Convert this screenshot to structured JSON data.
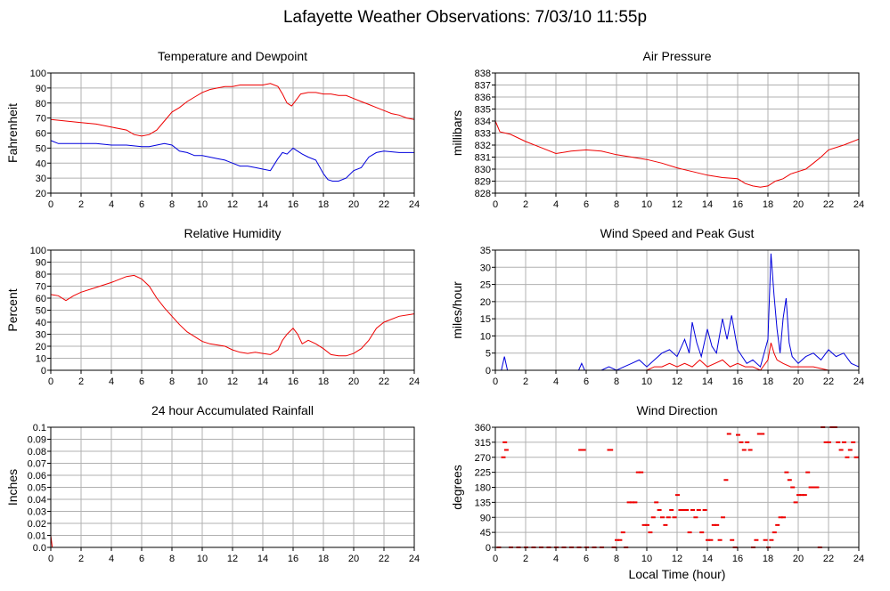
{
  "title": "Lafayette Weather Observations: 7/03/10 11:55p",
  "xlabel": "Local Time (hour)",
  "colors": {
    "red": "#ee0000",
    "blue": "#0000dd",
    "grid": "#b0b0b0",
    "frame": "#000000"
  },
  "chart_data": [
    {
      "id": "temp",
      "type": "line",
      "title": "Temperature and Dewpoint",
      "xlabel": "",
      "ylabel": "Fahrenheit",
      "xlim": [
        0,
        24
      ],
      "ylim": [
        20,
        100
      ],
      "xticks": [
        0,
        2,
        4,
        6,
        8,
        10,
        12,
        14,
        16,
        18,
        20,
        22,
        24
      ],
      "yticks": [
        20,
        30,
        40,
        50,
        60,
        70,
        80,
        90,
        100
      ],
      "grid": true,
      "series": [
        {
          "color": "#ee0000",
          "x": [
            0,
            1,
            2,
            3,
            4,
            5,
            5.5,
            6,
            6.5,
            7,
            7.5,
            8,
            8.5,
            9,
            9.5,
            10,
            10.5,
            11,
            11.5,
            12,
            12.5,
            13,
            13.5,
            14,
            14.5,
            15,
            15.3,
            15.6,
            15.9,
            16.2,
            16.5,
            17,
            17.5,
            18,
            18.5,
            19,
            19.5,
            20,
            20.5,
            21,
            21.5,
            22,
            22.5,
            23,
            23.5,
            24
          ],
          "y": [
            69,
            68,
            67,
            66,
            64,
            62,
            59,
            58,
            59,
            62,
            68,
            74,
            77,
            81,
            84,
            87,
            89,
            90,
            91,
            91,
            92,
            92,
            92,
            92,
            93,
            91,
            86,
            80,
            78,
            82,
            86,
            87,
            87,
            86,
            86,
            85,
            85,
            83,
            81,
            79,
            77,
            75,
            73,
            72,
            70,
            69
          ]
        },
        {
          "color": "#0000dd",
          "x": [
            0,
            0.5,
            1,
            2,
            3,
            4,
            5,
            6,
            6.5,
            7,
            7.5,
            8,
            8.5,
            9,
            9.5,
            10,
            10.5,
            11,
            11.5,
            12,
            12.5,
            13,
            13.5,
            14,
            14.5,
            15,
            15.3,
            15.6,
            16,
            16.3,
            16.6,
            17,
            17.5,
            18,
            18.3,
            18.6,
            19,
            19.5,
            20,
            20.5,
            21,
            21.5,
            22,
            23,
            24
          ],
          "y": [
            55,
            53,
            53,
            53,
            53,
            52,
            52,
            51,
            51,
            52,
            53,
            52,
            48,
            47,
            45,
            45,
            44,
            43,
            42,
            40,
            38,
            38,
            37,
            36,
            35,
            43,
            47,
            46,
            50,
            48,
            46,
            44,
            42,
            33,
            29,
            28,
            28,
            30,
            35,
            37,
            44,
            47,
            48,
            47,
            47
          ]
        }
      ]
    },
    {
      "id": "pressure",
      "type": "line",
      "title": "Air Pressure",
      "xlabel": "",
      "ylabel": "millibars",
      "xlim": [
        0,
        24
      ],
      "ylim": [
        828,
        838
      ],
      "xticks": [
        0,
        2,
        4,
        6,
        8,
        10,
        12,
        14,
        16,
        18,
        20,
        22,
        24
      ],
      "yticks": [
        828,
        829,
        830,
        831,
        832,
        833,
        834,
        835,
        836,
        837,
        838
      ],
      "grid": true,
      "series": [
        {
          "color": "#ee0000",
          "x": [
            0,
            0.3,
            1,
            2,
            3,
            4,
            5,
            6,
            7,
            8,
            9,
            10,
            11,
            12,
            13,
            14,
            15,
            16,
            16.5,
            17,
            17.5,
            18,
            18.5,
            19,
            19.5,
            20,
            20.5,
            21,
            21.5,
            22,
            23,
            24
          ],
          "y": [
            834,
            833.1,
            832.9,
            832.3,
            831.8,
            831.3,
            831.5,
            831.6,
            831.5,
            831.2,
            831.0,
            830.8,
            830.5,
            830.1,
            829.8,
            829.5,
            829.3,
            829.2,
            828.8,
            828.6,
            828.5,
            828.6,
            829.0,
            829.2,
            829.6,
            829.8,
            830.0,
            830.5,
            831.0,
            831.6,
            832.0,
            832.5
          ]
        }
      ]
    },
    {
      "id": "humidity",
      "type": "line",
      "title": "Relative Humidity",
      "xlabel": "",
      "ylabel": "Percent",
      "xlim": [
        0,
        24
      ],
      "ylim": [
        0,
        100
      ],
      "xticks": [
        0,
        2,
        4,
        6,
        8,
        10,
        12,
        14,
        16,
        18,
        20,
        22,
        24
      ],
      "yticks": [
        0,
        10,
        20,
        30,
        40,
        50,
        60,
        70,
        80,
        90,
        100
      ],
      "grid": true,
      "series": [
        {
          "color": "#ee0000",
          "x": [
            0,
            0.5,
            1,
            1.5,
            2,
            3,
            4,
            5,
            5.5,
            6,
            6.5,
            7,
            7.5,
            8,
            8.5,
            9,
            9.5,
            10,
            10.5,
            11,
            11.5,
            12,
            12.5,
            13,
            13.5,
            14,
            14.5,
            15,
            15.3,
            15.6,
            16,
            16.3,
            16.6,
            17,
            17.5,
            18,
            18.5,
            19,
            19.5,
            20,
            20.5,
            21,
            21.5,
            22,
            23,
            24
          ],
          "y": [
            63,
            62,
            58,
            62,
            65,
            69,
            73,
            78,
            79,
            76,
            70,
            60,
            52,
            45,
            38,
            32,
            28,
            24,
            22,
            21,
            20,
            17,
            15,
            14,
            15,
            14,
            13,
            17,
            25,
            30,
            35,
            30,
            22,
            25,
            22,
            18,
            13,
            12,
            12,
            14,
            18,
            25,
            35,
            40,
            45,
            47
          ]
        }
      ]
    },
    {
      "id": "wind",
      "type": "line",
      "title": "Wind Speed and Peak Gust",
      "xlabel": "",
      "ylabel": "miles/hour",
      "xlim": [
        0,
        24
      ],
      "ylim": [
        0,
        35
      ],
      "xticks": [
        0,
        2,
        4,
        6,
        8,
        10,
        12,
        14,
        16,
        18,
        20,
        22,
        24
      ],
      "yticks": [
        0,
        5,
        10,
        15,
        20,
        25,
        30,
        35
      ],
      "grid": true,
      "series": [
        {
          "color": "#0000dd",
          "x": [
            0,
            0.4,
            0.6,
            0.8,
            1,
            2,
            3,
            4,
            5,
            5.5,
            5.7,
            5.9,
            6,
            7,
            7.5,
            8,
            8.5,
            9,
            9.5,
            10,
            10.5,
            11,
            11.5,
            12,
            12.5,
            12.8,
            13,
            13.3,
            13.6,
            14,
            14.3,
            14.6,
            15,
            15.3,
            15.6,
            16,
            16.3,
            16.6,
            17,
            17.5,
            18,
            18.2,
            18.4,
            18.6,
            18.8,
            19,
            19.2,
            19.4,
            19.6,
            19.8,
            20,
            20.5,
            21,
            21.5,
            22,
            22.5,
            23,
            23.5,
            24
          ],
          "y": [
            0,
            0,
            4,
            0,
            0,
            0,
            0,
            0,
            0,
            0,
            2,
            0,
            0,
            0,
            1,
            0,
            1,
            2,
            3,
            1,
            3,
            5,
            6,
            4,
            9,
            5,
            14,
            8,
            4,
            12,
            7,
            5,
            15,
            9,
            16,
            6,
            4,
            2,
            3,
            1,
            9,
            34,
            22,
            12,
            5,
            15,
            21,
            8,
            4,
            3,
            2,
            4,
            5,
            3,
            6,
            4,
            5,
            2,
            1
          ]
        },
        {
          "color": "#ee0000",
          "x": [
            0,
            1,
            2,
            3,
            4,
            5,
            6,
            7,
            8,
            9,
            10,
            10.5,
            11,
            11.5,
            12,
            12.5,
            13,
            13.5,
            14,
            14.5,
            15,
            15.5,
            16,
            16.5,
            17,
            17.5,
            18,
            18.2,
            18.4,
            18.6,
            19,
            19.5,
            20,
            20.5,
            21,
            22,
            23,
            24
          ],
          "y": [
            0,
            0,
            0,
            0,
            0,
            0,
            0,
            0,
            0,
            0,
            0,
            1,
            1,
            2,
            1,
            2,
            1,
            3,
            1,
            2,
            3,
            1,
            2,
            1,
            1,
            0,
            3,
            8,
            5,
            3,
            2,
            1,
            1,
            1,
            1,
            0,
            0,
            0
          ]
        }
      ]
    },
    {
      "id": "rain",
      "type": "line",
      "title": "24 hour Accumulated Rainfall",
      "xlabel": "",
      "ylabel": "Inches",
      "xlim": [
        0,
        24
      ],
      "ylim": [
        0,
        0.1
      ],
      "xticks": [
        0,
        2,
        4,
        6,
        8,
        10,
        12,
        14,
        16,
        18,
        20,
        22,
        24
      ],
      "yticks": [
        0.0,
        0.01,
        0.02,
        0.03,
        0.04,
        0.05,
        0.06,
        0.07,
        0.08,
        0.09,
        0.1
      ],
      "ytick_labels": [
        "0.0",
        "0.01",
        "0.02",
        "0.03",
        "0.04",
        "0.05",
        "0.06",
        "0.07",
        "0.08",
        "0.09",
        "0.1"
      ],
      "grid": true,
      "series": [
        {
          "color": "#ee0000",
          "x": [
            0,
            0.1,
            24
          ],
          "y": [
            0.01,
            0,
            0
          ]
        }
      ]
    },
    {
      "id": "direction",
      "type": "scatter",
      "title": "Wind Direction",
      "xlabel": "Local Time (hour)",
      "ylabel": "degrees",
      "xlim": [
        0,
        24
      ],
      "ylim": [
        0,
        360
      ],
      "xticks": [
        0,
        2,
        4,
        6,
        8,
        10,
        12,
        14,
        16,
        18,
        20,
        22,
        24
      ],
      "yticks": [
        0,
        45,
        90,
        135,
        180,
        225,
        270,
        315,
        360
      ],
      "grid": true,
      "series": [
        {
          "color": "#ee0000",
          "x": [
            0.2,
            0.5,
            0.6,
            0.7,
            1.0,
            1.5,
            2.0,
            2.5,
            3.0,
            3.5,
            4.0,
            4.5,
            5.0,
            5.5,
            5.6,
            5.8,
            6.0,
            6.5,
            7.0,
            7.5,
            7.6,
            7.8,
            8.0,
            8.2,
            8.4,
            8.6,
            8.8,
            9.0,
            9.2,
            9.4,
            9.6,
            9.8,
            10.0,
            10.2,
            10.4,
            10.6,
            10.8,
            11.0,
            11.2,
            11.4,
            11.6,
            11.8,
            12.0,
            12.2,
            12.4,
            12.6,
            12.8,
            13.0,
            13.2,
            13.4,
            13.6,
            13.8,
            14.0,
            14.2,
            14.4,
            14.6,
            14.8,
            15.0,
            15.2,
            15.4,
            15.6,
            15.8,
            16.0,
            16.2,
            16.4,
            16.6,
            16.8,
            17.0,
            17.2,
            17.4,
            17.6,
            17.8,
            18.0,
            18.2,
            18.4,
            18.6,
            18.8,
            19.0,
            19.2,
            19.4,
            19.6,
            19.8,
            20.0,
            20.2,
            20.4,
            20.6,
            20.8,
            21.0,
            21.2,
            21.4,
            21.6,
            21.8,
            22.0,
            22.2,
            22.4,
            22.6,
            22.8,
            23.0,
            23.2,
            23.4,
            23.6,
            23.8
          ],
          "y": [
            0,
            270,
            315,
            292,
            0,
            0,
            0,
            0,
            0,
            0,
            0,
            0,
            0,
            0,
            292,
            292,
            0,
            0,
            0,
            292,
            292,
            0,
            22,
            22,
            45,
            0,
            135,
            135,
            135,
            225,
            225,
            67,
            67,
            45,
            90,
            135,
            112,
            90,
            67,
            90,
            112,
            90,
            157,
            112,
            112,
            112,
            45,
            112,
            90,
            112,
            45,
            112,
            22,
            22,
            67,
            67,
            22,
            90,
            202,
            340,
            22,
            0,
            337,
            315,
            292,
            315,
            292,
            0,
            22,
            340,
            340,
            22,
            0,
            22,
            45,
            67,
            90,
            90,
            225,
            202,
            180,
            135,
            157,
            157,
            157,
            225,
            180,
            180,
            180,
            0,
            360,
            315,
            315,
            360,
            360,
            315,
            292,
            315,
            270,
            292,
            315,
            270
          ]
        }
      ]
    }
  ]
}
